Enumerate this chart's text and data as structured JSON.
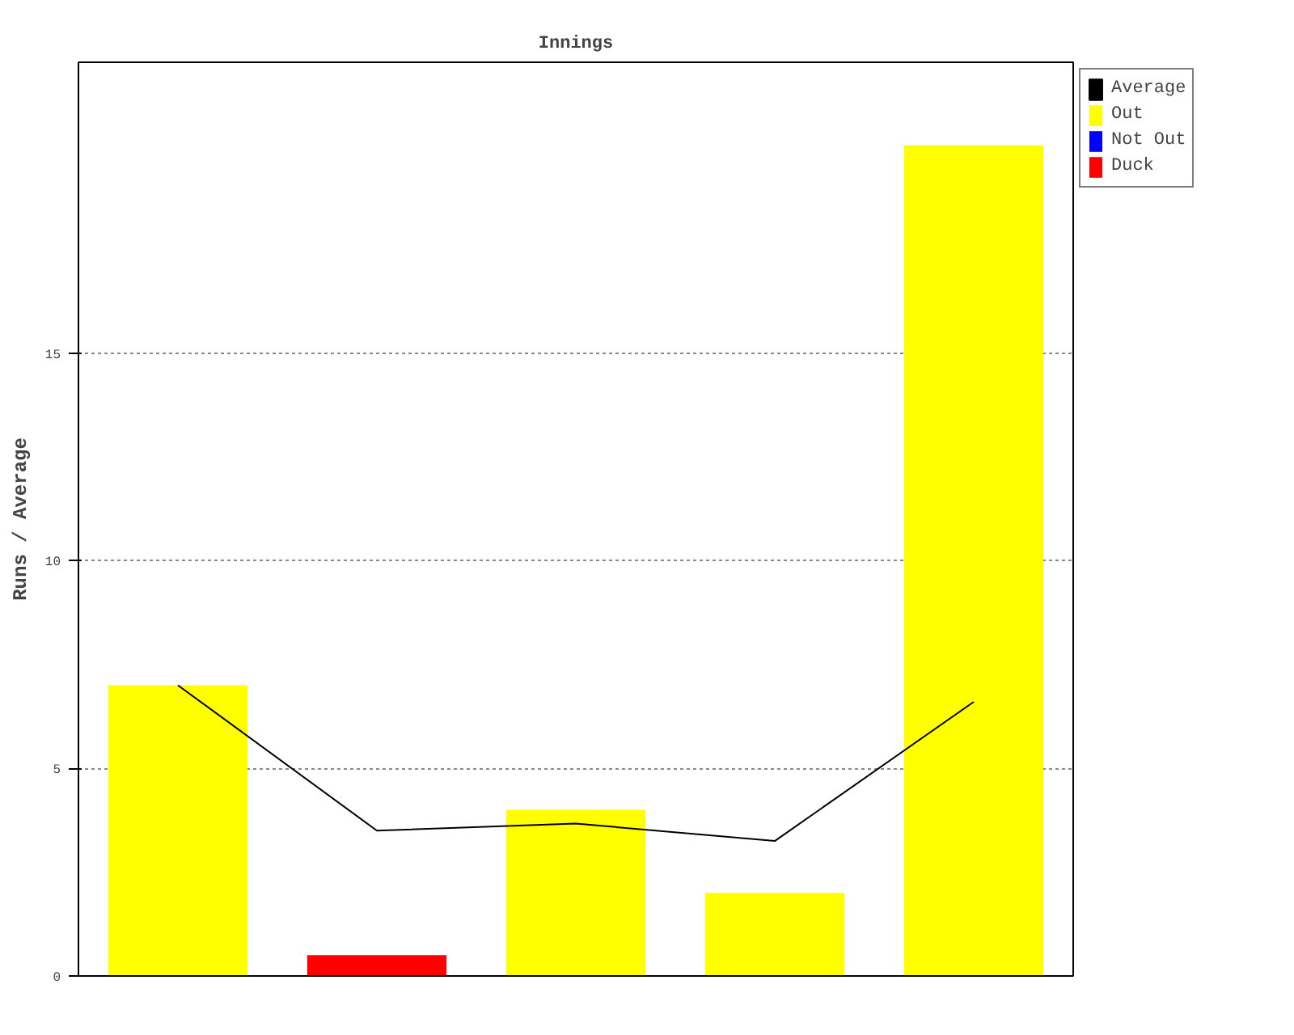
{
  "chart_data": {
    "type": "bar",
    "title": "Innings",
    "ylabel": "Runs / Average",
    "categories": [
      null,
      null,
      null,
      null,
      null
    ],
    "series": [
      {
        "name": "Average",
        "type": "line",
        "color": "#000000",
        "values": [
          7,
          3.5,
          3.67,
          3.25,
          6.6
        ]
      },
      {
        "name": "Out",
        "color": "#ffff00",
        "values": [
          7,
          null,
          4,
          2,
          20
        ]
      },
      {
        "name": "Not Out",
        "color": "#0000ff",
        "values": [
          null,
          null,
          null,
          null,
          null
        ]
      },
      {
        "name": "Duck",
        "color": "#ff0000",
        "values": [
          null,
          0.5,
          null,
          null,
          null
        ]
      }
    ],
    "ylim": [
      0,
      22
    ],
    "yticks": [
      0,
      5,
      10,
      15
    ],
    "grid": "y",
    "legend": "top right",
    "marker": "none",
    "line_style": "solid"
  }
}
